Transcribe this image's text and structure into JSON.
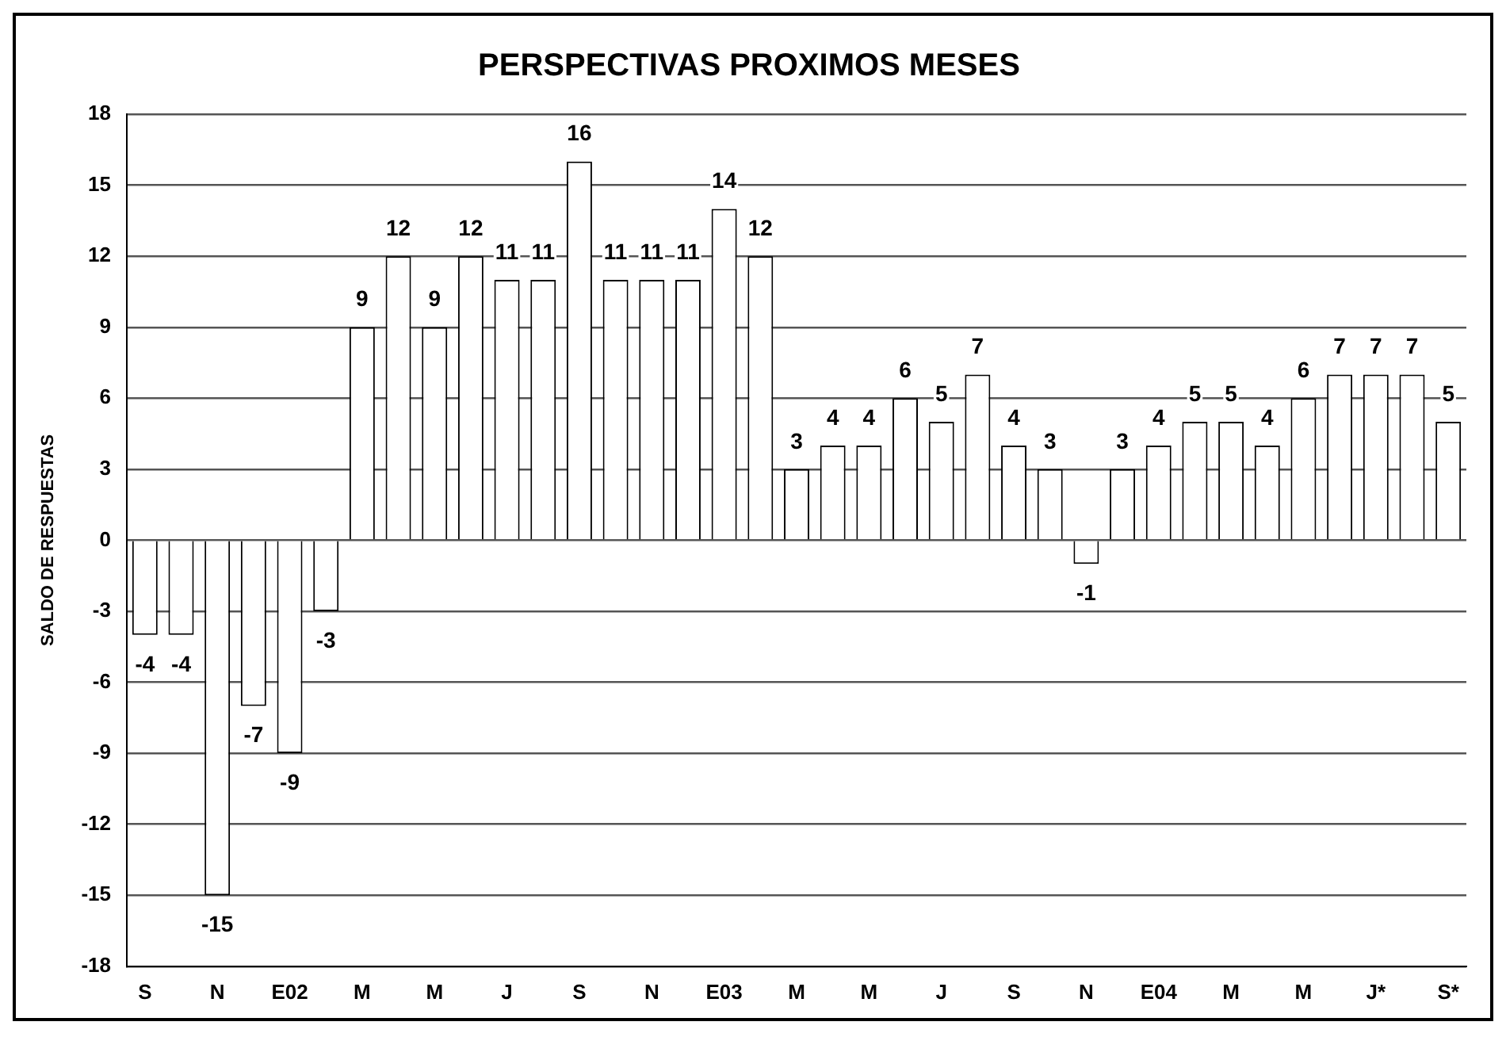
{
  "chart_data": {
    "type": "bar",
    "title": "PERSPECTIVAS PROXIMOS MESES",
    "ylabel": "SALDO DE RESPUESTAS",
    "categories": [
      "S",
      null,
      "N",
      null,
      "E02",
      null,
      "M",
      null,
      "M",
      null,
      "J",
      null,
      "S",
      null,
      "N",
      null,
      "E03",
      null,
      "M",
      null,
      "M",
      null,
      "J",
      null,
      "S",
      null,
      "N",
      null,
      "E04",
      null,
      "M",
      null,
      "M",
      null,
      "J*",
      null,
      "S*"
    ],
    "values": [
      -4,
      -4,
      -15,
      -7,
      -9,
      -3,
      9,
      12,
      9,
      12,
      11,
      11,
      16,
      11,
      11,
      11,
      14,
      12,
      3,
      4,
      4,
      6,
      5,
      7,
      4,
      3,
      -1,
      3,
      4,
      5,
      5,
      4,
      6,
      7,
      7,
      7,
      5
    ],
    "color": "#ffffff",
    "ylim": [
      -18,
      18
    ],
    "yticks": [
      -18,
      -15,
      -12,
      -9,
      -6,
      -3,
      0,
      3,
      6,
      9,
      12,
      15,
      18
    ],
    "grid": "y",
    "data_labels": true,
    "legend": false
  }
}
